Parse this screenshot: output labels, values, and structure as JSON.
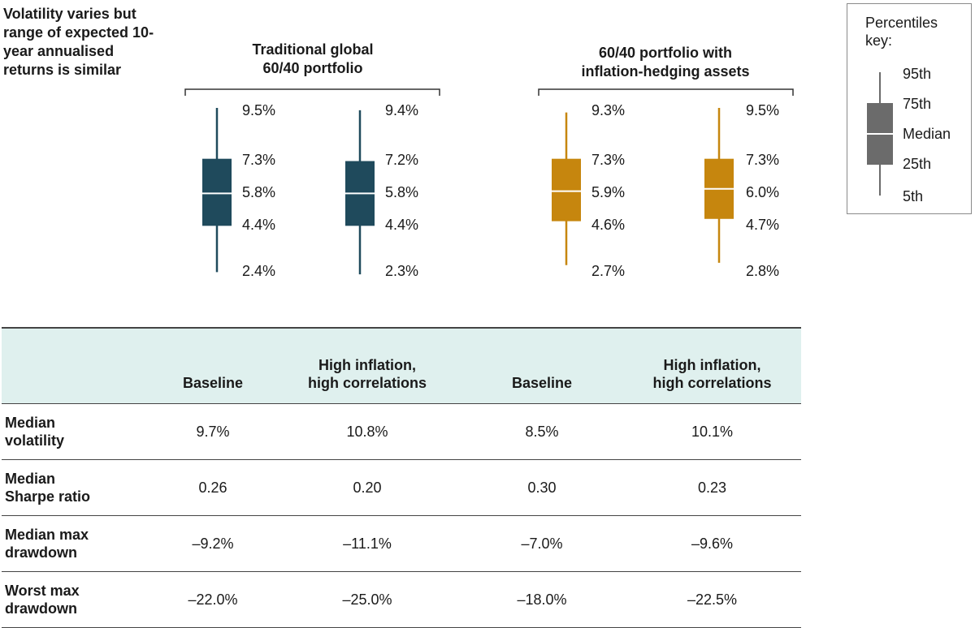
{
  "intro_text": "Volatility varies but range of expected 10-year annualised returns is similar",
  "groups": [
    {
      "title_line1": "Traditional global",
      "title_line2": "60/40 portfolio"
    },
    {
      "title_line1": "60/40 portfolio with",
      "title_line2": "inflation-hedging assets"
    }
  ],
  "key": {
    "title": "Percentiles key:",
    "labels": [
      "95th",
      "75th",
      "Median",
      "25th",
      "5th"
    ]
  },
  "colors": {
    "traditional": "#1f4a5c",
    "inflation_hedging": "#c6860e",
    "key": "#6b6b6b"
  },
  "chart_data": {
    "type": "boxplot",
    "title": "",
    "series": [
      {
        "group": "Traditional global 60/40 portfolio",
        "scenario": "Baseline",
        "p5": 2.4,
        "p25": 4.4,
        "median": 5.8,
        "p75": 7.3,
        "p95": 9.5
      },
      {
        "group": "Traditional global 60/40 portfolio",
        "scenario": "High inflation, high correlations",
        "p5": 2.3,
        "p25": 4.4,
        "median": 5.8,
        "p75": 7.2,
        "p95": 9.4
      },
      {
        "group": "60/40 portfolio with inflation-hedging assets",
        "scenario": "Baseline",
        "p5": 2.7,
        "p25": 4.6,
        "median": 5.9,
        "p75": 7.3,
        "p95": 9.3
      },
      {
        "group": "60/40 portfolio with inflation-hedging assets",
        "scenario": "High inflation, high correlations",
        "p5": 2.8,
        "p25": 4.7,
        "median": 6.0,
        "p75": 7.3,
        "p95": 9.5
      }
    ],
    "value_labels": [
      [
        "9.5%",
        "7.3%",
        "5.8%",
        "4.4%",
        "2.4%"
      ],
      [
        "9.4%",
        "7.2%",
        "5.8%",
        "4.4%",
        "2.3%"
      ],
      [
        "9.3%",
        "7.3%",
        "5.9%",
        "4.6%",
        "2.7%"
      ],
      [
        "9.5%",
        "7.3%",
        "6.0%",
        "4.7%",
        "2.8%"
      ]
    ]
  },
  "table": {
    "headers": [
      "Baseline",
      "High inflation, high correlations",
      "Baseline",
      "High inflation, high correlations"
    ],
    "header_lines": [
      [
        "Baseline"
      ],
      [
        "High inflation,",
        "high correlations"
      ],
      [
        "Baseline"
      ],
      [
        "High inflation,",
        "high correlations"
      ]
    ],
    "rows": [
      {
        "label_lines": [
          "Median",
          "volatility"
        ],
        "values": [
          "9.7%",
          "10.8%",
          "8.5%",
          "10.1%"
        ]
      },
      {
        "label_lines": [
          "Median",
          "Sharpe ratio"
        ],
        "values": [
          "0.26",
          "0.20",
          "0.30",
          "0.23"
        ]
      },
      {
        "label_lines": [
          "Median max",
          "drawdown"
        ],
        "values": [
          "–9.2%",
          "–11.1%",
          "–7.0%",
          "–9.6%"
        ]
      },
      {
        "label_lines": [
          "Worst max",
          "drawdown"
        ],
        "values": [
          "–22.0%",
          "–25.0%",
          "–18.0%",
          "–22.5%"
        ]
      }
    ]
  }
}
